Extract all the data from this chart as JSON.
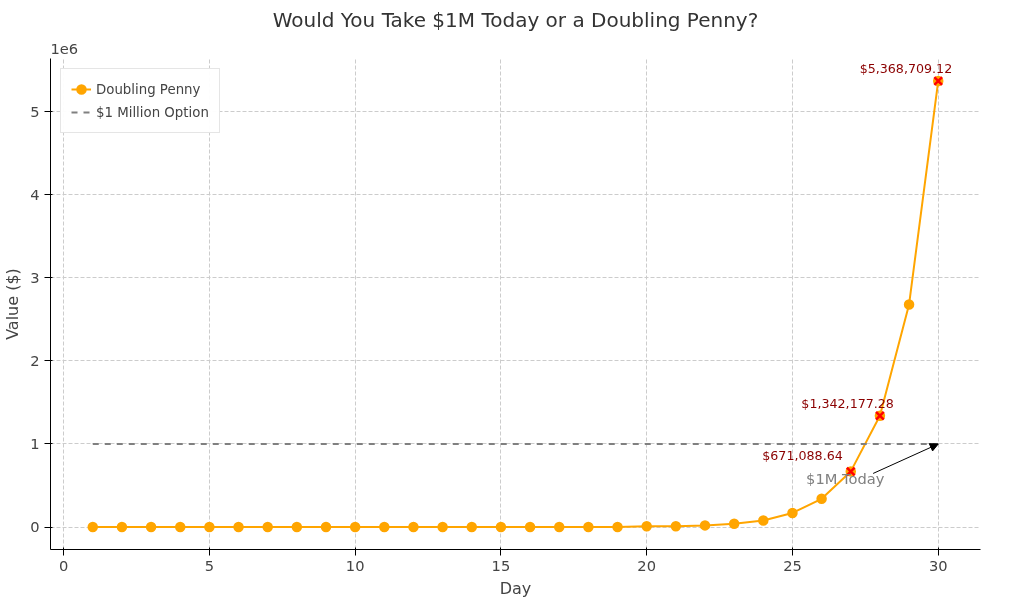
{
  "chart_data": {
    "type": "line",
    "title": "Would You Take $1M Today or a Doubling Penny?",
    "xlabel": "Day",
    "ylabel": "Value ($)",
    "x": [
      1,
      2,
      3,
      4,
      5,
      6,
      7,
      8,
      9,
      10,
      11,
      12,
      13,
      14,
      15,
      16,
      17,
      18,
      19,
      20,
      21,
      22,
      23,
      24,
      25,
      26,
      27,
      28,
      29,
      30
    ],
    "series": [
      {
        "name": "Doubling Penny",
        "color": "#ffa500",
        "marker": "circle",
        "values": [
          0,
          0,
          0,
          0,
          0,
          0,
          0,
          0,
          0,
          0,
          0,
          0,
          0,
          0,
          0,
          0,
          0,
          0,
          0,
          0.01,
          0.01,
          0.02,
          0.04,
          0.08,
          0.17,
          0.34,
          0.67,
          1.34,
          2.68,
          5.37
        ]
      },
      {
        "name": "$1 Million Option",
        "x": [
          1,
          30
        ],
        "values": [
          1,
          1
        ],
        "color": "#808080",
        "line_style": "dashed",
        "marker": "none"
      },
      {
        "type": "scatter",
        "x": [
          27,
          28,
          30
        ],
        "values": [
          0.67,
          1.34,
          5.37
        ],
        "color": "#ff0000",
        "marker": "cross"
      }
    ],
    "annotations": [
      "1e6",
      {
        "text": "$1M Today",
        "x": 30,
        "y": 1
      },
      {
        "text": "$671,088.64",
        "x": 27,
        "y": 0.67
      },
      {
        "text": "$1,342,177.28",
        "x": 28,
        "y": 1.34
      },
      {
        "text": "$5,368,709.12",
        "x": 30,
        "y": 5.37
      }
    ],
    "xlim": [
      -0.45,
      31.45
    ],
    "xticks": [
      0,
      5,
      10,
      15,
      20,
      25,
      30
    ],
    "ylim": [
      -0.27,
      5.64
    ],
    "yticks": [
      0,
      1,
      2,
      3,
      4,
      5
    ],
    "grid": true,
    "legend": "top left"
  }
}
